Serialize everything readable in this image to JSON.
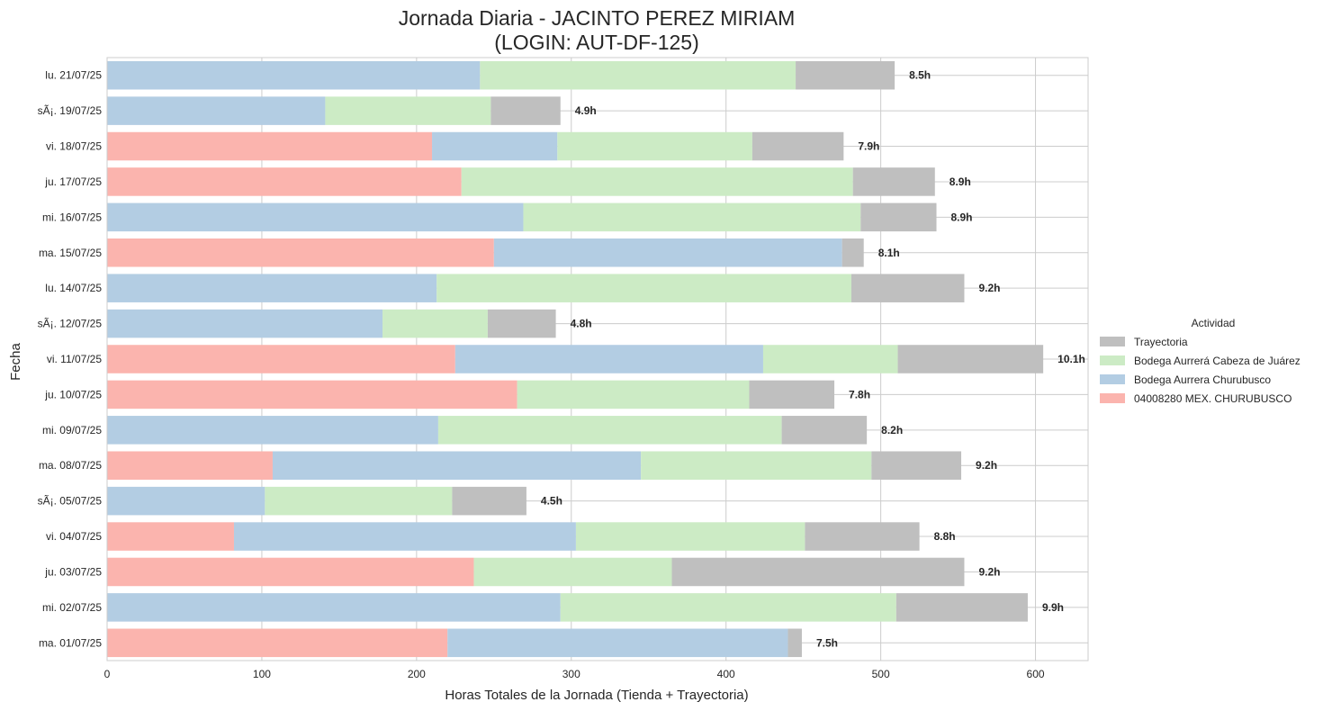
{
  "chart_data": {
    "type": "bar",
    "orientation": "horizontal",
    "stacked": true,
    "title_line1": "Jornada Diaria - JACINTO PEREZ MIRIAM",
    "title_line2": "(LOGIN: AUT-DF-125)",
    "xlabel": "Horas Totales de la Jornada (Tienda + Trayectoria)",
    "ylabel": "Fecha",
    "xlim": [
      0,
      634
    ],
    "xticks": [
      0,
      100,
      200,
      300,
      400,
      500,
      600
    ],
    "grid": true,
    "legend": {
      "title": "Actividad",
      "placement": "right",
      "entries": [
        "Trayectoria",
        "Bodega Aurrerá Cabeza de Juárez",
        "Bodega Aurrera Churubusco",
        "04008280 MEX. CHURUBUSCO"
      ]
    },
    "colors": {
      "04008280 MEX. CHURUBUSCO": "#fbb4ae",
      "Bodega Aurrera Churubusco": "#b3cde3",
      "Bodega Aurrerá Cabeza de Juárez": "#ccebc5",
      "Trayectoria": "#bfbfbf"
    },
    "series_order": [
      "04008280 MEX. CHURUBUSCO",
      "Bodega Aurrera Churubusco",
      "Bodega Aurrerá Cabeza de Juárez",
      "Trayectoria"
    ],
    "categories": [
      "ma. 01/07/25",
      "mi. 02/07/25",
      "ju. 03/07/25",
      "vi. 04/07/25",
      "sÃ¡. 05/07/25",
      "ma. 08/07/25",
      "mi. 09/07/25",
      "ju. 10/07/25",
      "vi. 11/07/25",
      "sÃ¡. 12/07/25",
      "lu. 14/07/25",
      "ma. 15/07/25",
      "mi. 16/07/25",
      "ju. 17/07/25",
      "vi. 18/07/25",
      "sÃ¡. 19/07/25",
      "lu. 21/07/25"
    ],
    "series": [
      {
        "name": "04008280 MEX. CHURUBUSCO",
        "values": [
          220,
          0,
          237,
          82,
          0,
          107,
          0,
          265,
          225,
          0,
          0,
          250,
          0,
          229,
          210,
          0,
          0
        ]
      },
      {
        "name": "Bodega Aurrera Churubusco",
        "values": [
          220,
          293,
          0,
          221,
          102,
          238,
          214,
          0,
          199,
          178,
          213,
          225,
          269,
          0,
          81,
          141,
          241
        ]
      },
      {
        "name": "Bodega Aurrerá Cabeza de Juárez",
        "values": [
          0,
          217,
          128,
          148,
          121,
          149,
          222,
          150,
          87,
          68,
          268,
          0,
          218,
          253,
          126,
          107,
          204
        ]
      },
      {
        "name": "Trayectoria",
        "values": [
          9,
          85,
          189,
          74,
          48,
          58,
          55,
          55,
          94,
          44,
          73,
          14,
          49,
          53,
          59,
          45,
          64
        ]
      }
    ],
    "total_labels": [
      "7.5h",
      "9.9h",
      "9.2h",
      "8.8h",
      "4.5h",
      "9.2h",
      "8.2h",
      "7.8h",
      "10.1h",
      "4.8h",
      "9.2h",
      "8.1h",
      "8.9h",
      "8.9h",
      "7.9h",
      "4.9h",
      "8.5h"
    ]
  }
}
